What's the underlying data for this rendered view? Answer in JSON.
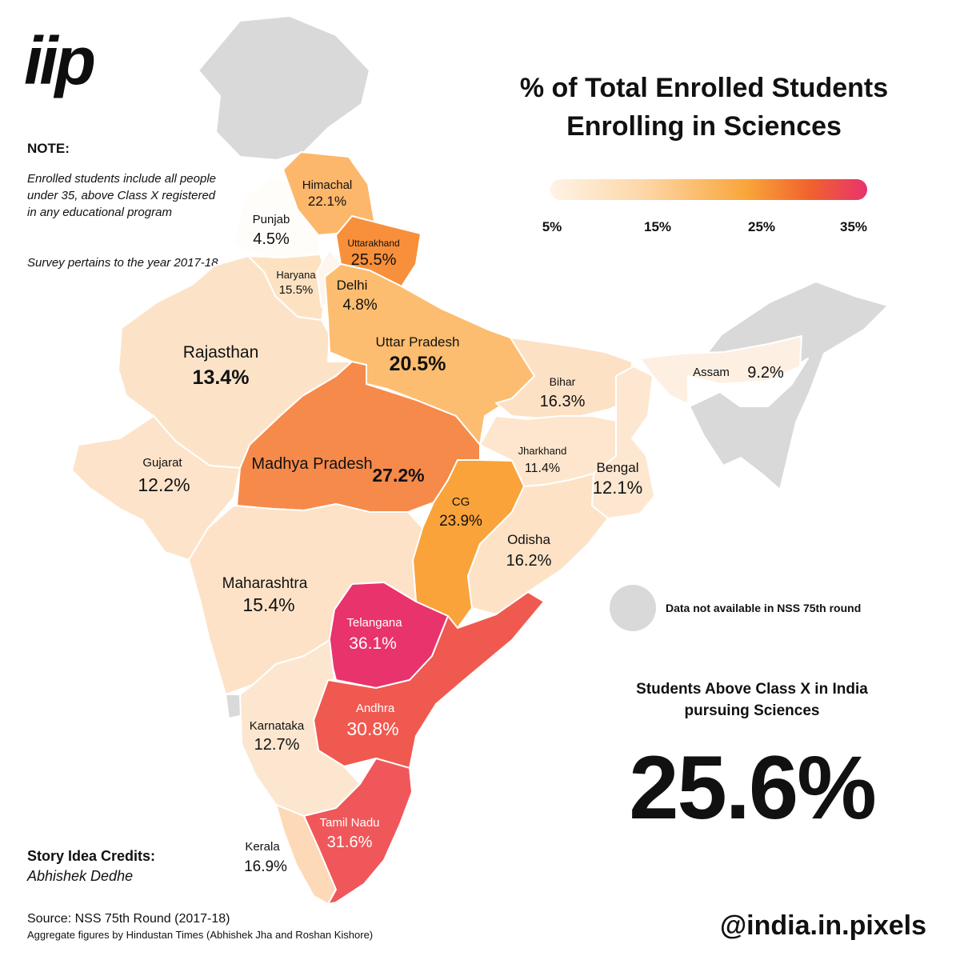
{
  "logo": "iip",
  "title_line1": "% of Total Enrolled Students",
  "title_line2": "Enrolling in Sciences",
  "legend": {
    "ticks": [
      "5%",
      "15%",
      "25%",
      "35%"
    ],
    "colors": [
      "#fff3e6",
      "#fdd6a6",
      "#f9a53a",
      "#f0622e",
      "#e8336c"
    ]
  },
  "note": {
    "heading": "NOTE:",
    "text1": "Enrolled students include all people under 35, above Class X registered in any educational program",
    "text2": "Survey pertains to the year 2017-18"
  },
  "states": [
    {
      "name": "Himachal",
      "value": "22.1%",
      "pct": 22.1
    },
    {
      "name": "Punjab",
      "value": "4.5%",
      "pct": 4.5
    },
    {
      "name": "Uttarakhand",
      "value": "25.5%",
      "pct": 25.5
    },
    {
      "name": "Haryana",
      "value": "15.5%",
      "pct": 15.5
    },
    {
      "name": "Delhi",
      "value": "4.8%",
      "pct": 4.8
    },
    {
      "name": "Rajasthan",
      "value": "13.4%",
      "pct": 13.4
    },
    {
      "name": "Uttar Pradesh",
      "value": "20.5%",
      "pct": 20.5
    },
    {
      "name": "Bihar",
      "value": "16.3%",
      "pct": 16.3
    },
    {
      "name": "Assam",
      "value": "9.2%",
      "pct": 9.2
    },
    {
      "name": "Gujarat",
      "value": "12.2%",
      "pct": 12.2
    },
    {
      "name": "Madhya Pradesh",
      "value": "27.2%",
      "pct": 27.2
    },
    {
      "name": "Jharkhand",
      "value": "11.4%",
      "pct": 11.4
    },
    {
      "name": "Bengal",
      "value": "12.1%",
      "pct": 12.1
    },
    {
      "name": "CG",
      "value": "23.9%",
      "pct": 23.9
    },
    {
      "name": "Odisha",
      "value": "16.2%",
      "pct": 16.2
    },
    {
      "name": "Maharashtra",
      "value": "15.4%",
      "pct": 15.4
    },
    {
      "name": "Telangana",
      "value": "36.1%",
      "pct": 36.1
    },
    {
      "name": "Andhra",
      "value": "30.8%",
      "pct": 30.8
    },
    {
      "name": "Karnataka",
      "value": "12.7%",
      "pct": 12.7
    },
    {
      "name": "Tamil Nadu",
      "value": "31.6%",
      "pct": 31.6
    },
    {
      "name": "Kerala",
      "value": "16.9%",
      "pct": 16.9
    }
  ],
  "na_label": "Data not available in NSS 75th round",
  "na_color": "#d9d9d9",
  "stat": {
    "label": "Students Above Class X in India pursuing Sciences",
    "value": "25.6%"
  },
  "credits": {
    "heading": "Story Idea Credits:",
    "name": "Abhishek Dedhe"
  },
  "source": {
    "line1": "Source: NSS 75th Round (2017-18)",
    "line2": "Aggregate figures by Hindustan Times (Abhishek Jha and Roshan Kishore)"
  },
  "handle": "@india.in.pixels"
}
